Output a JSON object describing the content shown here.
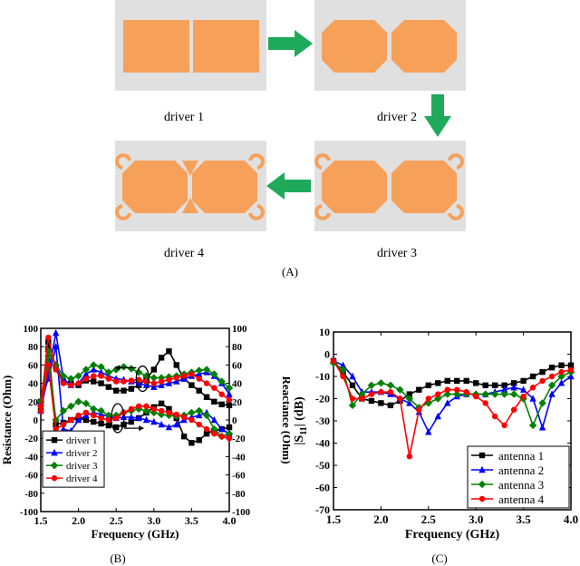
{
  "panel_a": {
    "drivers": [
      {
        "label": "driver 1",
        "shape": "squares"
      },
      {
        "label": "driver 2",
        "shape": "octagons"
      },
      {
        "label": "driver 3",
        "shape": "octagons-with-corner-loops"
      },
      {
        "label": "driver 4",
        "shape": "octagons-with-corner-loops-and-bridge"
      }
    ],
    "caption": "(A)",
    "colors": {
      "patch": "#f7a05a",
      "background": "#e0e0e0",
      "arrow": "#1eaa5a"
    }
  },
  "panel_b": {
    "caption": "(B)",
    "chart_data": {
      "type": "line",
      "xlabel": "Frequency (GHz)",
      "ylabel": "Resistance (Ohm)",
      "y2label": "Reactance (Ohm)",
      "xlim": [
        1.5,
        4.0
      ],
      "ylim": [
        -100,
        100
      ],
      "y2lim": [
        -100,
        100
      ],
      "xticks": [
        "1.5",
        "2.0",
        "2.5",
        "3.0",
        "3.5",
        "4.0"
      ],
      "yticks": [
        "100",
        "80",
        "60",
        "40",
        "20",
        "0",
        "-20",
        "-40",
        "-60",
        "-80",
        "-100"
      ],
      "y2ticks": [
        "100",
        "80",
        "60",
        "40",
        "20",
        "0",
        "-20",
        "-40",
        "-60",
        "-80",
        "-100"
      ],
      "x": [
        1.5,
        1.6,
        1.7,
        1.8,
        1.9,
        2.0,
        2.1,
        2.2,
        2.3,
        2.4,
        2.5,
        2.6,
        2.7,
        2.8,
        2.9,
        3.0,
        3.1,
        3.2,
        3.3,
        3.4,
        3.5,
        3.6,
        3.7,
        3.8,
        3.9,
        4.0
      ],
      "series": [
        {
          "name": "driver 1",
          "color": "#000000",
          "marker": "square",
          "resistance": [
            10,
            85,
            58,
            42,
            40,
            38,
            43,
            42,
            40,
            36,
            32,
            32,
            34,
            38,
            45,
            55,
            68,
            75,
            60,
            45,
            38,
            32,
            25,
            20,
            17,
            16
          ],
          "reactance": [
            20,
            78,
            -5,
            -3,
            0,
            2,
            0,
            -2,
            -4,
            -6,
            -8,
            -5,
            -2,
            2,
            8,
            14,
            18,
            12,
            2,
            -18,
            -25,
            -22,
            -15,
            -12,
            -10,
            -8
          ]
        },
        {
          "name": "driver 2",
          "color": "#0000ff",
          "marker": "triangle",
          "resistance": [
            10,
            50,
            95,
            45,
            38,
            40,
            50,
            55,
            52,
            48,
            45,
            44,
            42,
            40,
            38,
            36,
            38,
            40,
            42,
            45,
            48,
            50,
            52,
            48,
            40,
            28
          ],
          "reactance": [
            20,
            45,
            80,
            -10,
            -12,
            0,
            5,
            8,
            6,
            4,
            2,
            3,
            3,
            2,
            0,
            -2,
            -5,
            -8,
            -5,
            0,
            3,
            5,
            8,
            0,
            -10,
            -15
          ]
        },
        {
          "name": "driver 3",
          "color": "#008000",
          "marker": "diamond",
          "resistance": [
            20,
            75,
            60,
            48,
            45,
            48,
            55,
            60,
            58,
            52,
            55,
            58,
            56,
            52,
            48,
            46,
            46,
            47,
            48,
            50,
            52,
            54,
            55,
            50,
            42,
            35
          ],
          "reactance": [
            15,
            70,
            0,
            10,
            15,
            20,
            18,
            12,
            10,
            5,
            5,
            8,
            10,
            12,
            10,
            8,
            6,
            5,
            4,
            5,
            8,
            10,
            5,
            -10,
            -18,
            -15
          ]
        },
        {
          "name": "driver 4",
          "color": "#ff0000",
          "marker": "circle",
          "resistance": [
            15,
            90,
            55,
            40,
            38,
            40,
            45,
            48,
            48,
            45,
            42,
            42,
            43,
            44,
            42,
            40,
            42,
            44,
            46,
            48,
            50,
            45,
            40,
            35,
            28,
            22
          ],
          "reactance": [
            10,
            60,
            -10,
            -5,
            0,
            5,
            8,
            5,
            2,
            0,
            2,
            8,
            12,
            15,
            15,
            12,
            10,
            8,
            6,
            3,
            0,
            -5,
            -10,
            -15,
            -18,
            -20
          ]
        }
      ],
      "legend_position": "bottom-left"
    }
  },
  "panel_c": {
    "caption": "(C)",
    "chart_data": {
      "type": "line",
      "xlabel": "Frequency (GHz)",
      "ylabel": "|S11| (dB)",
      "xlim": [
        1.5,
        4.0
      ],
      "ylim": [
        -70,
        10
      ],
      "xticks": [
        "1.5",
        "2.0",
        "2.5",
        "3.0",
        "3.5",
        "4.0"
      ],
      "yticks": [
        "10",
        "0",
        "-10",
        "-20",
        "-30",
        "-40",
        "-50",
        "-60",
        "-70"
      ],
      "x": [
        1.5,
        1.6,
        1.7,
        1.8,
        1.9,
        2.0,
        2.1,
        2.2,
        2.3,
        2.4,
        2.5,
        2.6,
        2.7,
        2.8,
        2.9,
        3.0,
        3.1,
        3.2,
        3.3,
        3.4,
        3.5,
        3.6,
        3.7,
        3.8,
        3.9,
        4.0
      ],
      "series": [
        {
          "name": "antenna 1",
          "color": "#000000",
          "marker": "square",
          "values": [
            -3,
            -8,
            -14,
            -20,
            -21,
            -22,
            -23,
            -21,
            -18,
            -16,
            -14,
            -13,
            -12,
            -12,
            -12,
            -13,
            -14,
            -14,
            -14,
            -13,
            -12,
            -10,
            -8,
            -6,
            -5,
            -5
          ]
        },
        {
          "name": "antenna 2",
          "color": "#0000ff",
          "marker": "triangle",
          "values": [
            -3,
            -5,
            -10,
            -17,
            -17,
            -17,
            -18,
            -20,
            -22,
            -26,
            -35,
            -28,
            -22,
            -19,
            -18,
            -18,
            -18,
            -17,
            -16,
            -15,
            -16,
            -20,
            -33,
            -18,
            -13,
            -10
          ]
        },
        {
          "name": "antenna 3",
          "color": "#008000",
          "marker": "diamond",
          "values": [
            -4,
            -7,
            -23,
            -18,
            -14,
            -13,
            -14,
            -16,
            -20,
            -24,
            -22,
            -20,
            -18,
            -18,
            -18,
            -18,
            -18,
            -18,
            -18,
            -18,
            -20,
            -32,
            -22,
            -14,
            -10,
            -8
          ]
        },
        {
          "name": "antenna 4",
          "color": "#ff0000",
          "marker": "circle",
          "values": [
            -3,
            -10,
            -20,
            -20,
            -18,
            -17,
            -17,
            -20,
            -46,
            -25,
            -20,
            -18,
            -16,
            -16,
            -17,
            -19,
            -22,
            -28,
            -32,
            -25,
            -19,
            -15,
            -12,
            -10,
            -8,
            -7
          ]
        }
      ],
      "legend_position": "bottom-right"
    }
  }
}
